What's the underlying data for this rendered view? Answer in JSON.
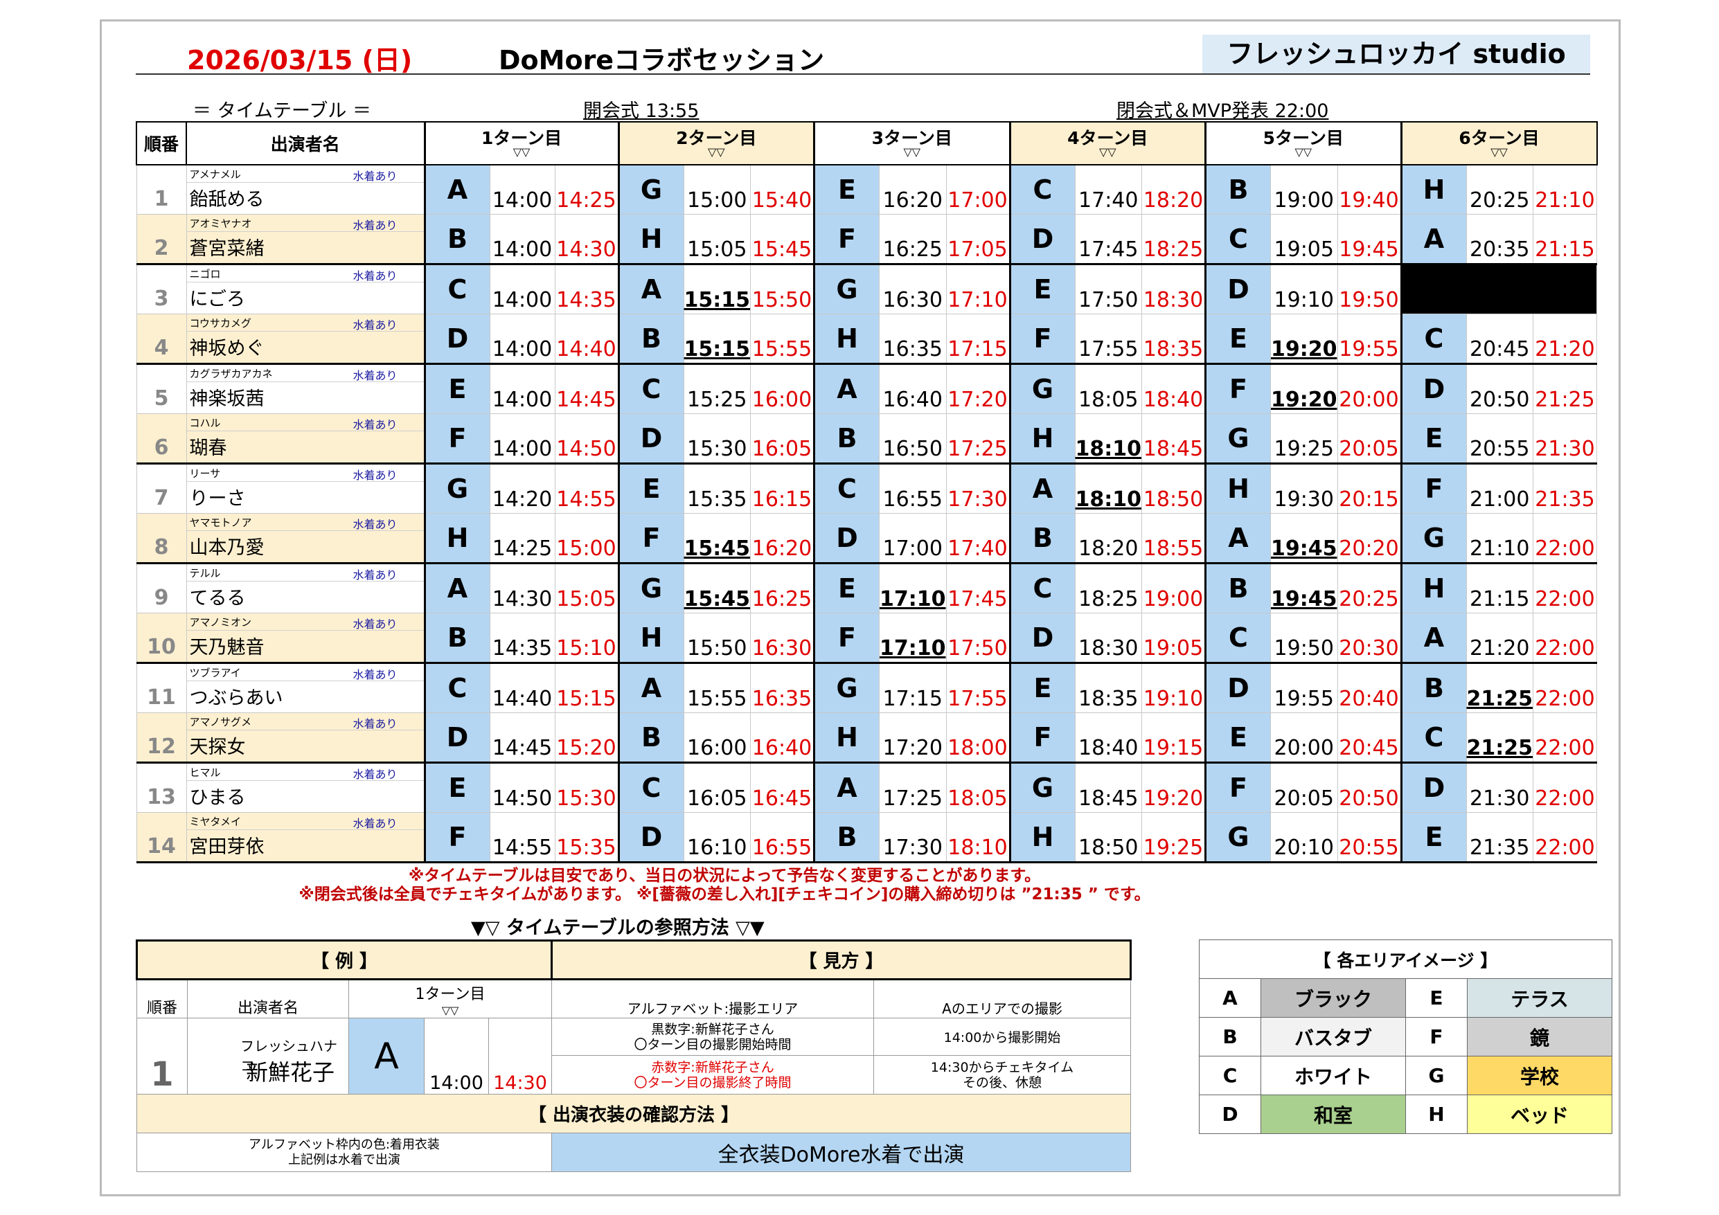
{
  "header": {
    "date": "2026/03/15 (日)",
    "event_title": "DoMoreコラボセッション",
    "studio": "フレッシュロッカイ studio",
    "timetable_label": "＝ タイムテーブル ＝",
    "opening": "開会式 13:55",
    "closing": "閉会式＆MVP発表 22:00"
  },
  "table": {
    "col_order": "順番",
    "col_performer": "出演者名",
    "turns": [
      {
        "label": "1ターン目",
        "mark": "▽▽"
      },
      {
        "label": "2ターン目",
        "mark": "▽▽"
      },
      {
        "label": "3ターン目",
        "mark": "▽▽"
      },
      {
        "label": "4ターン目",
        "mark": "▽▽"
      },
      {
        "label": "5ターン目",
        "mark": "▽▽"
      },
      {
        "label": "6ターン目",
        "mark": "▽▽"
      }
    ],
    "rows": [
      {
        "no": "1",
        "kana": "アメナメル",
        "swim": "水着あり",
        "name": "飴舐める",
        "slots": [
          [
            "A",
            "14:00",
            "14:25",
            0
          ],
          [
            "G",
            "15:00",
            "15:40",
            0
          ],
          [
            "E",
            "16:20",
            "17:00",
            0
          ],
          [
            "C",
            "17:40",
            "18:20",
            0
          ],
          [
            "B",
            "19:00",
            "19:40",
            0
          ],
          [
            "H",
            "20:25",
            "21:10",
            0
          ]
        ]
      },
      {
        "no": "2",
        "kana": "アオミヤナオ",
        "swim": "水着あり",
        "name": "蒼宮菜緒",
        "slots": [
          [
            "B",
            "14:00",
            "14:30",
            0
          ],
          [
            "H",
            "15:05",
            "15:45",
            0
          ],
          [
            "F",
            "16:25",
            "17:05",
            0
          ],
          [
            "D",
            "17:45",
            "18:25",
            0
          ],
          [
            "C",
            "19:05",
            "19:45",
            0
          ],
          [
            "A",
            "20:35",
            "21:15",
            0
          ]
        ]
      },
      {
        "no": "3",
        "kana": "ニゴロ",
        "swim": "水着あり",
        "name": "にごろ",
        "slots": [
          [
            "C",
            "14:00",
            "14:35",
            0
          ],
          [
            "A",
            "15:15",
            "15:50",
            1
          ],
          [
            "G",
            "16:30",
            "17:10",
            0
          ],
          [
            "E",
            "17:50",
            "18:30",
            0
          ],
          [
            "D",
            "19:10",
            "19:50",
            0
          ],
          null
        ]
      },
      {
        "no": "4",
        "kana": "コウサカメグ",
        "swim": "水着あり",
        "name": "神坂めぐ",
        "slots": [
          [
            "D",
            "14:00",
            "14:40",
            0
          ],
          [
            "B",
            "15:15",
            "15:55",
            1
          ],
          [
            "H",
            "16:35",
            "17:15",
            0
          ],
          [
            "F",
            "17:55",
            "18:35",
            0
          ],
          [
            "E",
            "19:20",
            "19:55",
            1
          ],
          [
            "C",
            "20:45",
            "21:20",
            0
          ]
        ]
      },
      {
        "no": "5",
        "kana": "カグラザカアカネ",
        "swim": "水着あり",
        "name": "神楽坂茜",
        "slots": [
          [
            "E",
            "14:00",
            "14:45",
            0
          ],
          [
            "C",
            "15:25",
            "16:00",
            0
          ],
          [
            "A",
            "16:40",
            "17:20",
            0
          ],
          [
            "G",
            "18:05",
            "18:40",
            0
          ],
          [
            "F",
            "19:20",
            "20:00",
            1
          ],
          [
            "D",
            "20:50",
            "21:25",
            0
          ]
        ]
      },
      {
        "no": "6",
        "kana": "コハル",
        "swim": "水着あり",
        "name": "瑚春",
        "slots": [
          [
            "F",
            "14:00",
            "14:50",
            0
          ],
          [
            "D",
            "15:30",
            "16:05",
            0
          ],
          [
            "B",
            "16:50",
            "17:25",
            0
          ],
          [
            "H",
            "18:10",
            "18:45",
            1
          ],
          [
            "G",
            "19:25",
            "20:05",
            0
          ],
          [
            "E",
            "20:55",
            "21:30",
            0
          ]
        ]
      },
      {
        "no": "7",
        "kana": "リーサ",
        "swim": "水着あり",
        "name": "りーさ",
        "slots": [
          [
            "G",
            "14:20",
            "14:55",
            0
          ],
          [
            "E",
            "15:35",
            "16:15",
            0
          ],
          [
            "C",
            "16:55",
            "17:30",
            0
          ],
          [
            "A",
            "18:10",
            "18:50",
            1
          ],
          [
            "H",
            "19:30",
            "20:15",
            0
          ],
          [
            "F",
            "21:00",
            "21:35",
            0
          ]
        ]
      },
      {
        "no": "8",
        "kana": "ヤマモトノア",
        "swim": "水着あり",
        "name": "山本乃愛",
        "slots": [
          [
            "H",
            "14:25",
            "15:00",
            0
          ],
          [
            "F",
            "15:45",
            "16:20",
            1
          ],
          [
            "D",
            "17:00",
            "17:40",
            0
          ],
          [
            "B",
            "18:20",
            "18:55",
            0
          ],
          [
            "A",
            "19:45",
            "20:20",
            1
          ],
          [
            "G",
            "21:10",
            "22:00",
            0
          ]
        ]
      },
      {
        "no": "9",
        "kana": "テルル",
        "swim": "水着あり",
        "name": "てるる",
        "slots": [
          [
            "A",
            "14:30",
            "15:05",
            0
          ],
          [
            "G",
            "15:45",
            "16:25",
            1
          ],
          [
            "E",
            "17:10",
            "17:45",
            1
          ],
          [
            "C",
            "18:25",
            "19:00",
            0
          ],
          [
            "B",
            "19:45",
            "20:25",
            1
          ],
          [
            "H",
            "21:15",
            "22:00",
            0
          ]
        ]
      },
      {
        "no": "10",
        "kana": "アマノミオン",
        "swim": "水着あり",
        "name": "天乃魅音",
        "slots": [
          [
            "B",
            "14:35",
            "15:10",
            0
          ],
          [
            "H",
            "15:50",
            "16:30",
            0
          ],
          [
            "F",
            "17:10",
            "17:50",
            1
          ],
          [
            "D",
            "18:30",
            "19:05",
            0
          ],
          [
            "C",
            "19:50",
            "20:30",
            0
          ],
          [
            "A",
            "21:20",
            "22:00",
            0
          ]
        ]
      },
      {
        "no": "11",
        "kana": "ツブラアイ",
        "swim": "水着あり",
        "name": "つぶらあい",
        "slots": [
          [
            "C",
            "14:40",
            "15:15",
            0
          ],
          [
            "A",
            "15:55",
            "16:35",
            0
          ],
          [
            "G",
            "17:15",
            "17:55",
            0
          ],
          [
            "E",
            "18:35",
            "19:10",
            0
          ],
          [
            "D",
            "19:55",
            "20:40",
            0
          ],
          [
            "B",
            "21:25",
            "22:00",
            1
          ]
        ]
      },
      {
        "no": "12",
        "kana": "アマノサグメ",
        "swim": "水着あり",
        "name": "天探女",
        "slots": [
          [
            "D",
            "14:45",
            "15:20",
            0
          ],
          [
            "B",
            "16:00",
            "16:40",
            0
          ],
          [
            "H",
            "17:20",
            "18:00",
            0
          ],
          [
            "F",
            "18:40",
            "19:15",
            0
          ],
          [
            "E",
            "20:00",
            "20:45",
            0
          ],
          [
            "C",
            "21:25",
            "22:00",
            1
          ]
        ]
      },
      {
        "no": "13",
        "kana": "ヒマル",
        "swim": "水着あり",
        "name": "ひまる",
        "slots": [
          [
            "E",
            "14:50",
            "15:30",
            0
          ],
          [
            "C",
            "16:05",
            "16:45",
            0
          ],
          [
            "A",
            "17:25",
            "18:05",
            0
          ],
          [
            "G",
            "18:45",
            "19:20",
            0
          ],
          [
            "F",
            "20:05",
            "20:50",
            0
          ],
          [
            "D",
            "21:30",
            "22:00",
            0
          ]
        ]
      },
      {
        "no": "14",
        "kana": "ミヤタメイ",
        "swim": "水着あり",
        "name": "宮田芽依",
        "slots": [
          [
            "F",
            "14:55",
            "15:35",
            0
          ],
          [
            "D",
            "16:10",
            "16:55",
            0
          ],
          [
            "B",
            "17:30",
            "18:10",
            0
          ],
          [
            "H",
            "18:50",
            "19:25",
            0
          ],
          [
            "G",
            "20:10",
            "20:55",
            0
          ],
          [
            "E",
            "21:35",
            "22:00",
            0
          ]
        ]
      }
    ]
  },
  "notes": {
    "line1": "※タイムテーブルは目安であり、当日の状況によって予告なく変更することがあります。",
    "line2": "※閉会式後は全員でチェキタイムがあります。 ※[薔薇の差し入れ][チェキコイン]の購入締め切りは ”21:35 ” です。"
  },
  "reference": {
    "title": "▼▽ タイムテーブルの参照方法 ▽▼",
    "example_header": "【 例 】",
    "howto_header": "【 見方 】",
    "ex_col_order": "順番",
    "ex_col_name": "出演者名",
    "ex_turn": "1ターン目",
    "ex_turn_mark": "▽▽",
    "ex_no": "1",
    "ex_kana": "フレッシュハナコ",
    "ex_name": "新鮮花子",
    "ex_area": "A",
    "ex_start": "14:00",
    "ex_end": "14:30",
    "h1a": "アルファベット:撮影エリア",
    "h1b": "Aのエリアでの撮影",
    "h2a": "黒数字:新鮮花子さん\n〇ターン目の撮影開始時間",
    "h2b": "14:00から撮影開始",
    "h3a": "赤数字:新鮮花子さん\n〇ターン目の撮影終了時間",
    "h3b": "14:30からチェキタイム\nその後、休憩",
    "costume_header": "【 出演衣装の確認方法 】",
    "costume_left": "アルファベット枠内の色:着用衣装\n上記例は水着で出演",
    "costume_right": "全衣装DoMore水着で出演"
  },
  "areas": {
    "title": "【 各エリアイメージ 】",
    "items": [
      {
        "letter": "A",
        "name": "ブラック",
        "color": "#bfbfbf"
      },
      {
        "letter": "E",
        "name": "テラス",
        "color": "#d6e4e8"
      },
      {
        "letter": "B",
        "name": "バスタブ",
        "color": "#f2f2f2"
      },
      {
        "letter": "F",
        "name": "鏡",
        "color": "#d0d0d0"
      },
      {
        "letter": "C",
        "name": "ホワイト",
        "color": "#ffffff"
      },
      {
        "letter": "G",
        "name": "学校",
        "color": "#ffd966"
      },
      {
        "letter": "D",
        "name": "和室",
        "color": "#a9d08e"
      },
      {
        "letter": "H",
        "name": "ベッド",
        "color": "#ffff99"
      }
    ]
  }
}
